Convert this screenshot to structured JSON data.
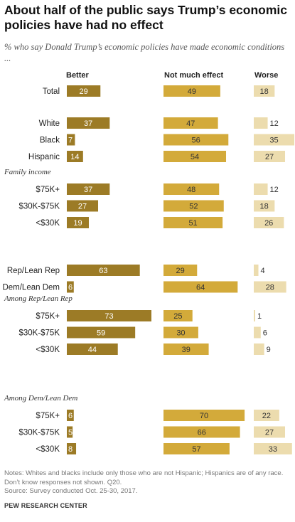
{
  "chart_data": {
    "type": "bar",
    "title": "About half of the public says Trump’s economic policies have had no effect",
    "subtitle": "% who say Donald Trump’s economic policies have made economic conditions ...",
    "series": [
      {
        "name": "Better",
        "color": "#9c7b26",
        "text_color": "#ffffff"
      },
      {
        "name": "Not much effect",
        "color": "#d3aa3a",
        "text_color": "#333333"
      },
      {
        "name": "Worse",
        "color": "#ecdcae",
        "text_color": "#333333"
      }
    ],
    "groups": [
      {
        "label": "",
        "rows": [
          {
            "category": "Total",
            "values": [
              29,
              49,
              18
            ]
          }
        ]
      },
      {
        "label": "",
        "rows": [
          {
            "category": "White",
            "values": [
              37,
              47,
              12
            ]
          },
          {
            "category": "Black",
            "values": [
              7,
              56,
              35
            ]
          },
          {
            "category": "Hispanic",
            "values": [
              14,
              54,
              27
            ]
          }
        ]
      },
      {
        "label": "Family income",
        "rows": [
          {
            "category": "$75K+",
            "values": [
              37,
              48,
              12
            ]
          },
          {
            "category": "$30K-$75K",
            "values": [
              27,
              52,
              18
            ]
          },
          {
            "category": "<$30K",
            "values": [
              19,
              51,
              26
            ]
          }
        ]
      },
      {
        "label": "",
        "rows": [
          {
            "category": "Rep/Lean Rep",
            "values": [
              63,
              29,
              4
            ]
          },
          {
            "category": "Dem/Lean Dem",
            "values": [
              6,
              64,
              28
            ]
          }
        ]
      },
      {
        "label": "Among Rep/Lean Rep",
        "rows": [
          {
            "category": "$75K+",
            "values": [
              73,
              25,
              1
            ]
          },
          {
            "category": "$30K-$75K",
            "values": [
              59,
              30,
              6
            ]
          },
          {
            "category": "<$30K",
            "values": [
              44,
              39,
              9
            ]
          }
        ]
      },
      {
        "label": "Among Dem/Lean Dem",
        "rows": [
          {
            "category": "$75K+",
            "values": [
              6,
              70,
              22
            ]
          },
          {
            "category": "$30K-$75K",
            "values": [
              5,
              66,
              27
            ]
          },
          {
            "category": "<$30K",
            "values": [
              8,
              57,
              33
            ]
          }
        ]
      }
    ],
    "notes": "Notes: Whites and blacks include only those who are not Hispanic; Hispanics are of any race. Don’t know responses not shown. Q20.",
    "source": "Source: Survey conducted Oct. 25-30, 2017.",
    "footer": "PEW RESEARCH CENTER"
  }
}
